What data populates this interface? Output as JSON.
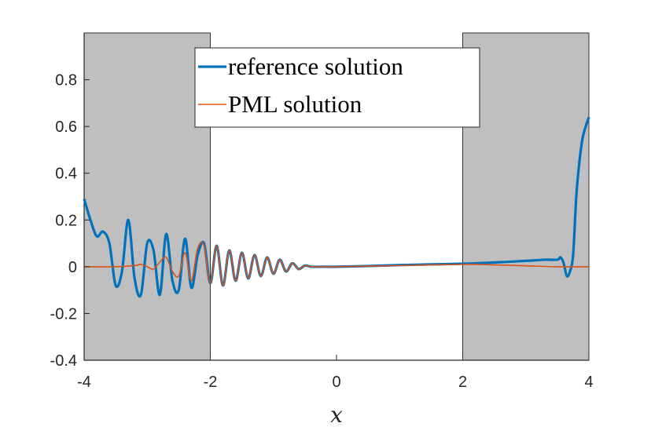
{
  "chart_data": {
    "type": "line",
    "xlabel": "x",
    "ylabel": "",
    "xlim": [
      -4,
      4
    ],
    "ylim": [
      -0.4,
      1.0
    ],
    "x_ticks": [
      "-4",
      "-2",
      "0",
      "2",
      "4"
    ],
    "y_ticks": [
      "-0.4",
      "-0.2",
      "0",
      "0.2",
      "0.4",
      "0.6",
      "0.8"
    ],
    "shaded_regions": [
      [
        -4,
        -2
      ],
      [
        2,
        4
      ]
    ],
    "shaded_color": "#bfbfbf",
    "legend": {
      "position": "top-center"
    },
    "series": [
      {
        "name": "reference solution",
        "color": "#0072bd",
        "x": [
          -4.0,
          -3.9,
          -3.8,
          -3.7,
          -3.6,
          -3.5,
          -3.4,
          -3.3,
          -3.2,
          -3.1,
          -3.0,
          -2.9,
          -2.8,
          -2.7,
          -2.6,
          -2.5,
          -2.4,
          -2.3,
          -2.2,
          -2.1,
          -2.0,
          -1.9,
          -1.8,
          -1.7,
          -1.6,
          -1.5,
          -1.4,
          -1.3,
          -1.2,
          -1.1,
          -1.0,
          -0.9,
          -0.8,
          -0.7,
          -0.6,
          -0.5,
          -0.4,
          -0.2,
          0.0,
          0.5,
          1.0,
          1.5,
          2.0,
          2.5,
          3.0,
          3.3,
          3.5,
          3.55,
          3.6,
          3.65,
          3.7,
          3.75,
          3.8,
          3.85,
          3.9,
          3.95,
          4.0
        ],
        "y": [
          0.29,
          0.2,
          0.13,
          0.15,
          0.1,
          -0.08,
          -0.02,
          0.2,
          -0.05,
          -0.12,
          0.1,
          0.07,
          -0.12,
          0.14,
          -0.06,
          -0.1,
          0.12,
          -0.09,
          0.05,
          0.1,
          -0.07,
          0.09,
          -0.08,
          0.07,
          -0.06,
          0.06,
          -0.05,
          0.05,
          -0.04,
          0.04,
          -0.03,
          0.03,
          -0.02,
          0.015,
          -0.01,
          0.005,
          0.0,
          0.0,
          0.0,
          0.003,
          0.007,
          0.01,
          0.013,
          0.018,
          0.025,
          0.03,
          0.03,
          0.04,
          0.015,
          -0.04,
          -0.02,
          0.05,
          0.3,
          0.45,
          0.55,
          0.6,
          0.64
        ]
      },
      {
        "name": "PML solution",
        "color": "#d95319",
        "x": [
          -4.0,
          -3.5,
          -3.2,
          -3.1,
          -3.0,
          -2.9,
          -2.8,
          -2.7,
          -2.6,
          -2.5,
          -2.4,
          -2.3,
          -2.2,
          -2.1,
          -2.0,
          -1.9,
          -1.8,
          -1.7,
          -1.6,
          -1.5,
          -1.4,
          -1.3,
          -1.2,
          -1.1,
          -1.0,
          -0.9,
          -0.8,
          -0.7,
          -0.6,
          -0.5,
          -0.4,
          -0.2,
          0.0,
          1.0,
          2.0,
          2.5,
          3.0,
          3.5,
          4.0
        ],
        "y": [
          0.0,
          0.0,
          0.005,
          0.01,
          0.0,
          -0.01,
          0.02,
          0.04,
          -0.02,
          -0.04,
          0.06,
          -0.06,
          0.08,
          0.09,
          -0.07,
          0.09,
          -0.08,
          0.07,
          -0.06,
          0.06,
          -0.05,
          0.05,
          -0.04,
          0.04,
          -0.03,
          0.03,
          -0.02,
          0.015,
          -0.01,
          0.005,
          0.0,
          0.0,
          0.0,
          0.005,
          0.01,
          0.008,
          0.004,
          0.0,
          0.0
        ]
      }
    ]
  }
}
